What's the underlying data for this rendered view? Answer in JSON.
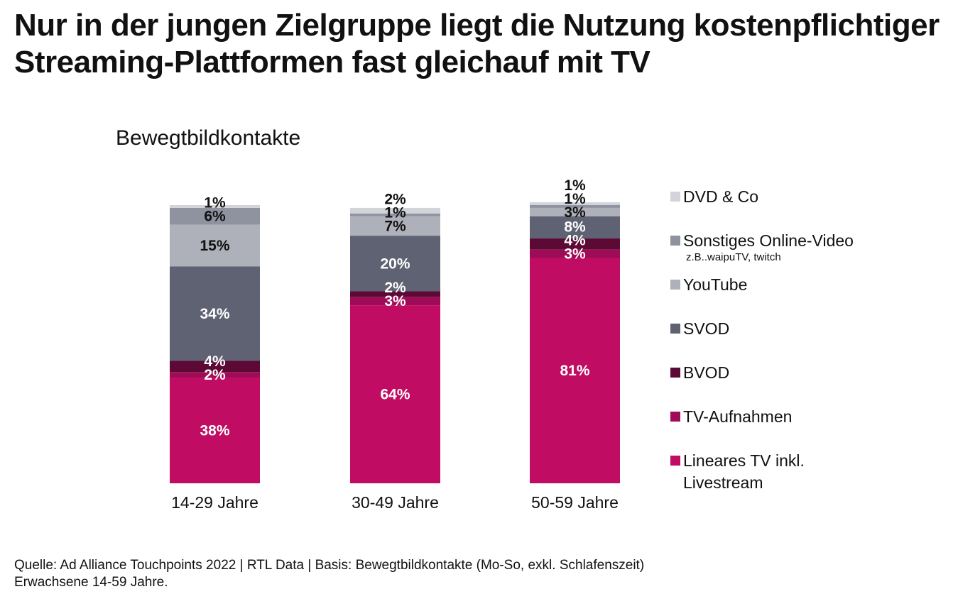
{
  "title": {
    "line1": "Nur in der jungen Zielgruppe liegt die Nutzung kostenpflichtiger",
    "line2": "Streaming-Plattformen fast gleichauf mit TV"
  },
  "subtitle": "Bewegtbildkontakte",
  "source": {
    "line1": "Quelle: Ad Alliance Touchpoints 2022 | RTL Data | Basis: Bewegtbildkontakte (Mo-So, exkl. Schlafenszeit)",
    "line2": "Erwachsene 14-59 Jahre."
  },
  "legend": [
    {
      "label": "DVD & Co",
      "color": "#d3d4da"
    },
    {
      "label": "Sonstiges Online-Video",
      "note": "z.B..waipuTV, twitch",
      "color": "#8f939f"
    },
    {
      "label": "YouTube",
      "color": "#aeb0ba"
    },
    {
      "label": "SVOD",
      "color": "#5f6272"
    },
    {
      "label": "BVOD",
      "color": "#5c0a35"
    },
    {
      "label": "TV-Aufnahmen",
      "color": "#9e0b56"
    },
    {
      "label": "Lineares TV inkl.",
      "label2": "Livestream",
      "color": "#c00c62"
    }
  ],
  "chart_data": {
    "type": "bar",
    "stacked": true,
    "categories": [
      "14-29 Jahre",
      "30-49 Jahre",
      "50-59 Jahre"
    ],
    "series": [
      {
        "name": "Lineares TV inkl. Livestream",
        "values": [
          38,
          64,
          81
        ],
        "labels": [
          "38%",
          "64%",
          "81%"
        ],
        "color": "#c00c62"
      },
      {
        "name": "TV-Aufnahmen",
        "values": [
          2,
          3,
          3
        ],
        "labels": [
          "2%",
          "3%",
          "3%"
        ],
        "color": "#9e0b56"
      },
      {
        "name": "BVOD",
        "values": [
          4,
          2,
          4
        ],
        "labels": [
          "4%",
          "2%",
          "4%"
        ],
        "color": "#5c0a35"
      },
      {
        "name": "SVOD",
        "values": [
          34,
          20,
          8
        ],
        "labels": [
          "34%",
          "20%",
          "8%"
        ],
        "color": "#5f6272"
      },
      {
        "name": "YouTube",
        "values": [
          15,
          7,
          3
        ],
        "labels": [
          "15%",
          "7%",
          "3%"
        ],
        "color": "#aeb0ba"
      },
      {
        "name": "Sonstiges Online-Video",
        "values": [
          6,
          1,
          1
        ],
        "labels": [
          "6%",
          "1%",
          "1%"
        ],
        "color": "#8f939f"
      },
      {
        "name": "DVD & Co",
        "values": [
          1,
          2,
          1
        ],
        "labels": [
          "1%",
          "2%",
          "1%"
        ],
        "color": "#d3d4da"
      }
    ],
    "ylim": [
      0,
      100
    ],
    "legend_position": "right",
    "grid": false
  }
}
